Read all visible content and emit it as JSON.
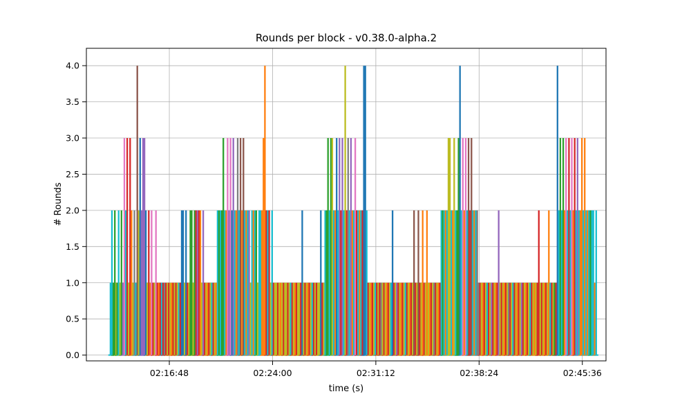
{
  "chart_data": {
    "type": "line",
    "title": "Rounds per block  -  v0.38.0-alpha.2",
    "xlabel": "time (s)",
    "ylabel": "# Rounds",
    "ylim": [
      -0.08,
      4.24
    ],
    "y_ticks": [
      "0.0",
      "0.5",
      "1.0",
      "1.5",
      "2.0",
      "2.5",
      "3.0",
      "3.5",
      "4.0"
    ],
    "xlim_seconds": [
      7861,
      10035
    ],
    "x_ticks": [
      {
        "t": 8208,
        "label": "02:16:48"
      },
      {
        "t": 8640,
        "label": "02:24:00"
      },
      {
        "t": 9072,
        "label": "02:31:12"
      },
      {
        "t": 9504,
        "label": "02:38:24"
      },
      {
        "t": 9936,
        "label": "02:45:36"
      }
    ],
    "grid": true,
    "legend": "none",
    "palette": [
      "#1f77b4",
      "#ff7f0e",
      "#2ca02c",
      "#d62728",
      "#9467bd",
      "#8c564b",
      "#e377c2",
      "#7f7f7f",
      "#bcbd22",
      "#17becf"
    ],
    "spikes": [
      [
        7962,
        1,
        9
      ],
      [
        7968,
        2,
        9
      ],
      [
        7974,
        1,
        2
      ],
      [
        7980,
        2,
        2
      ],
      [
        7986,
        1,
        8
      ],
      [
        7990,
        1,
        2
      ],
      [
        7996,
        2,
        9
      ],
      [
        8002,
        1,
        8
      ],
      [
        8008,
        2,
        2
      ],
      [
        8014,
        1,
        4
      ],
      [
        8020,
        3,
        6
      ],
      [
        8026,
        2,
        9
      ],
      [
        8032,
        3,
        3
      ],
      [
        8038,
        1,
        8
      ],
      [
        8044,
        3,
        3
      ],
      [
        8050,
        2,
        1
      ],
      [
        8056,
        1,
        8
      ],
      [
        8062,
        2,
        7
      ],
      [
        8068,
        1,
        9
      ],
      [
        8074,
        4,
        5
      ],
      [
        8080,
        2,
        8
      ],
      [
        8086,
        3,
        0
      ],
      [
        8092,
        2,
        4
      ],
      [
        8098,
        3,
        4
      ],
      [
        8104,
        3,
        4
      ],
      [
        8110,
        2,
        0
      ],
      [
        8116,
        1,
        8
      ],
      [
        8122,
        2,
        3
      ],
      [
        8128,
        1,
        1
      ],
      [
        8134,
        2,
        6
      ],
      [
        8140,
        1,
        3
      ],
      [
        8146,
        1,
        8
      ],
      [
        8152,
        2,
        6
      ],
      [
        8158,
        1,
        3
      ],
      [
        8164,
        1,
        1
      ],
      [
        8170,
        1,
        3
      ],
      [
        8176,
        1,
        9
      ],
      [
        8182,
        1,
        3
      ],
      [
        8188,
        1,
        7
      ],
      [
        8194,
        1,
        3
      ],
      [
        8200,
        1,
        8
      ],
      [
        8206,
        1,
        3
      ],
      [
        8212,
        1,
        8
      ],
      [
        8218,
        1,
        1
      ],
      [
        8224,
        1,
        3
      ],
      [
        8230,
        1,
        8
      ],
      [
        8236,
        1,
        3
      ],
      [
        8242,
        1,
        8
      ],
      [
        8248,
        1,
        9
      ],
      [
        8254,
        1,
        3
      ],
      [
        8260,
        2,
        0
      ],
      [
        8266,
        2,
        0
      ],
      [
        8272,
        1,
        8
      ],
      [
        8278,
        2,
        0
      ],
      [
        8284,
        1,
        3
      ],
      [
        8290,
        1,
        8
      ],
      [
        8296,
        2,
        2
      ],
      [
        8302,
        2,
        2
      ],
      [
        8308,
        1,
        8
      ],
      [
        8314,
        2,
        2
      ],
      [
        8320,
        2,
        3
      ],
      [
        8326,
        2,
        4
      ],
      [
        8332,
        2,
        3
      ],
      [
        8338,
        2,
        1
      ],
      [
        8344,
        1,
        8
      ],
      [
        8350,
        2,
        4
      ],
      [
        8356,
        1,
        3
      ],
      [
        8362,
        1,
        8
      ],
      [
        8368,
        1,
        1
      ],
      [
        8374,
        1,
        3
      ],
      [
        8380,
        1,
        8
      ],
      [
        8386,
        1,
        9
      ],
      [
        8392,
        1,
        3
      ],
      [
        8398,
        1,
        8
      ],
      [
        8404,
        1,
        1
      ],
      [
        8410,
        2,
        9
      ],
      [
        8416,
        2,
        2
      ],
      [
        8422,
        2,
        9
      ],
      [
        8428,
        2,
        2
      ],
      [
        8434,
        3,
        2
      ],
      [
        8440,
        2,
        9
      ],
      [
        8446,
        2,
        1
      ],
      [
        8452,
        3,
        6
      ],
      [
        8458,
        2,
        4
      ],
      [
        8464,
        3,
        6
      ],
      [
        8470,
        2,
        0
      ],
      [
        8476,
        3,
        4
      ],
      [
        8482,
        2,
        9
      ],
      [
        8488,
        2,
        1
      ],
      [
        8494,
        3,
        7
      ],
      [
        8500,
        2,
        9
      ],
      [
        8506,
        3,
        5
      ],
      [
        8512,
        2,
        1
      ],
      [
        8518,
        3,
        5
      ],
      [
        8524,
        2,
        9
      ],
      [
        8530,
        2,
        1
      ],
      [
        8536,
        2,
        9
      ],
      [
        8542,
        2,
        4
      ],
      [
        8548,
        1,
        8
      ],
      [
        8554,
        2,
        9
      ],
      [
        8560,
        2,
        1
      ],
      [
        8566,
        2,
        9
      ],
      [
        8572,
        2,
        2
      ],
      [
        8578,
        1,
        8
      ],
      [
        8584,
        2,
        9
      ],
      [
        8590,
        2,
        9
      ],
      [
        8596,
        2,
        1
      ],
      [
        8602,
        3,
        1
      ],
      [
        8608,
        4,
        1
      ],
      [
        8614,
        2,
        3
      ],
      [
        8620,
        2,
        9
      ],
      [
        8626,
        2,
        3
      ],
      [
        8632,
        1,
        8
      ],
      [
        8638,
        2,
        9
      ],
      [
        8644,
        1,
        3
      ],
      [
        8650,
        1,
        8
      ],
      [
        8656,
        1,
        8
      ],
      [
        8662,
        1,
        3
      ],
      [
        8668,
        1,
        8
      ],
      [
        8674,
        1,
        1
      ],
      [
        8680,
        1,
        8
      ],
      [
        8686,
        1,
        3
      ],
      [
        8692,
        1,
        8
      ],
      [
        8698,
        1,
        8
      ],
      [
        8704,
        1,
        3
      ],
      [
        8710,
        1,
        8
      ],
      [
        8716,
        1,
        9
      ],
      [
        8722,
        1,
        3
      ],
      [
        8728,
        1,
        8
      ],
      [
        8734,
        1,
        1
      ],
      [
        8740,
        1,
        3
      ],
      [
        8746,
        1,
        8
      ],
      [
        8752,
        1,
        8
      ],
      [
        8758,
        1,
        3
      ],
      [
        8764,
        2,
        0
      ],
      [
        8770,
        1,
        8
      ],
      [
        8776,
        1,
        3
      ],
      [
        8782,
        1,
        8
      ],
      [
        8788,
        1,
        1
      ],
      [
        8794,
        1,
        3
      ],
      [
        8800,
        1,
        8
      ],
      [
        8806,
        1,
        9
      ],
      [
        8812,
        1,
        3
      ],
      [
        8818,
        1,
        8
      ],
      [
        8824,
        1,
        3
      ],
      [
        8830,
        1,
        8
      ],
      [
        8836,
        1,
        8
      ],
      [
        8842,
        2,
        0
      ],
      [
        8848,
        1,
        3
      ],
      [
        8854,
        1,
        8
      ],
      [
        8860,
        2,
        9
      ],
      [
        8866,
        2,
        2
      ],
      [
        8872,
        3,
        2
      ],
      [
        8878,
        2,
        9
      ],
      [
        8884,
        3,
        2
      ],
      [
        8890,
        3,
        8
      ],
      [
        8896,
        2,
        9
      ],
      [
        8902,
        2,
        1
      ],
      [
        8908,
        3,
        0
      ],
      [
        8914,
        2,
        9
      ],
      [
        8920,
        3,
        4
      ],
      [
        8926,
        2,
        3
      ],
      [
        8932,
        3,
        4
      ],
      [
        8938,
        2,
        9
      ],
      [
        8944,
        4,
        8
      ],
      [
        8950,
        2,
        3
      ],
      [
        8956,
        3,
        7
      ],
      [
        8962,
        2,
        9
      ],
      [
        8968,
        3,
        4
      ],
      [
        8974,
        2,
        1
      ],
      [
        8980,
        2,
        9
      ],
      [
        8986,
        3,
        6
      ],
      [
        8992,
        2,
        3
      ],
      [
        8998,
        2,
        9
      ],
      [
        9004,
        2,
        1
      ],
      [
        9010,
        2,
        9
      ],
      [
        9016,
        2,
        3
      ],
      [
        9022,
        4,
        0
      ],
      [
        9028,
        4,
        0
      ],
      [
        9034,
        2,
        9
      ],
      [
        9040,
        1,
        3
      ],
      [
        9046,
        1,
        8
      ],
      [
        9052,
        1,
        1
      ],
      [
        9058,
        1,
        3
      ],
      [
        9064,
        1,
        8
      ],
      [
        9070,
        1,
        9
      ],
      [
        9076,
        1,
        3
      ],
      [
        9082,
        1,
        8
      ],
      [
        9088,
        1,
        3
      ],
      [
        9094,
        1,
        7
      ],
      [
        9100,
        1,
        8
      ],
      [
        9106,
        1,
        3
      ],
      [
        9112,
        1,
        8
      ],
      [
        9118,
        1,
        1
      ],
      [
        9124,
        1,
        3
      ],
      [
        9130,
        1,
        8
      ],
      [
        9136,
        1,
        9
      ],
      [
        9142,
        2,
        0
      ],
      [
        9148,
        1,
        3
      ],
      [
        9154,
        1,
        8
      ],
      [
        9160,
        1,
        4
      ],
      [
        9166,
        1,
        3
      ],
      [
        9172,
        1,
        8
      ],
      [
        9178,
        1,
        1
      ],
      [
        9184,
        1,
        3
      ],
      [
        9190,
        1,
        8
      ],
      [
        9196,
        1,
        9
      ],
      [
        9202,
        1,
        3
      ],
      [
        9208,
        1,
        8
      ],
      [
        9214,
        1,
        1
      ],
      [
        9220,
        1,
        3
      ],
      [
        9226,
        1,
        8
      ],
      [
        9232,
        2,
        5
      ],
      [
        9238,
        1,
        3
      ],
      [
        9244,
        1,
        8
      ],
      [
        9250,
        2,
        5
      ],
      [
        9256,
        1,
        3
      ],
      [
        9262,
        1,
        8
      ],
      [
        9268,
        2,
        1
      ],
      [
        9274,
        1,
        3
      ],
      [
        9280,
        1,
        8
      ],
      [
        9286,
        2,
        1
      ],
      [
        9292,
        1,
        8
      ],
      [
        9298,
        1,
        1
      ],
      [
        9304,
        1,
        3
      ],
      [
        9310,
        1,
        8
      ],
      [
        9316,
        1,
        7
      ],
      [
        9322,
        1,
        3
      ],
      [
        9328,
        1,
        8
      ],
      [
        9334,
        1,
        1
      ],
      [
        9340,
        1,
        3
      ],
      [
        9346,
        2,
        9
      ],
      [
        9352,
        2,
        2
      ],
      [
        9358,
        2,
        9
      ],
      [
        9364,
        2,
        1
      ],
      [
        9370,
        2,
        9
      ],
      [
        9376,
        3,
        8
      ],
      [
        9382,
        3,
        8
      ],
      [
        9388,
        2,
        9
      ],
      [
        9394,
        2,
        1
      ],
      [
        9400,
        3,
        8
      ],
      [
        9406,
        2,
        9
      ],
      [
        9412,
        2,
        2
      ],
      [
        9418,
        3,
        2
      ],
      [
        9424,
        4,
        0
      ],
      [
        9430,
        2,
        9
      ],
      [
        9436,
        3,
        6
      ],
      [
        9442,
        2,
        1
      ],
      [
        9448,
        3,
        6
      ],
      [
        9454,
        2,
        9
      ],
      [
        9460,
        3,
        5
      ],
      [
        9466,
        2,
        3
      ],
      [
        9472,
        3,
        5
      ],
      [
        9478,
        2,
        9
      ],
      [
        9484,
        2,
        1
      ],
      [
        9490,
        2,
        9
      ],
      [
        9496,
        2,
        7
      ],
      [
        9502,
        1,
        7
      ],
      [
        9508,
        1,
        3
      ],
      [
        9514,
        1,
        8
      ],
      [
        9520,
        1,
        1
      ],
      [
        9526,
        1,
        3
      ],
      [
        9532,
        1,
        8
      ],
      [
        9538,
        1,
        9
      ],
      [
        9544,
        1,
        3
      ],
      [
        9550,
        1,
        8
      ],
      [
        9556,
        1,
        4
      ],
      [
        9562,
        1,
        3
      ],
      [
        9568,
        1,
        8
      ],
      [
        9574,
        1,
        1
      ],
      [
        9580,
        1,
        3
      ],
      [
        9586,
        2,
        4
      ],
      [
        9592,
        1,
        8
      ],
      [
        9598,
        1,
        3
      ],
      [
        9604,
        1,
        8
      ],
      [
        9610,
        1,
        1
      ],
      [
        9616,
        1,
        3
      ],
      [
        9622,
        1,
        8
      ],
      [
        9628,
        1,
        7
      ],
      [
        9634,
        1,
        3
      ],
      [
        9640,
        1,
        8
      ],
      [
        9646,
        1,
        9
      ],
      [
        9652,
        1,
        3
      ],
      [
        9658,
        1,
        8
      ],
      [
        9664,
        1,
        1
      ],
      [
        9670,
        1,
        3
      ],
      [
        9676,
        1,
        8
      ],
      [
        9682,
        1,
        4
      ],
      [
        9688,
        1,
        3
      ],
      [
        9694,
        1,
        8
      ],
      [
        9700,
        1,
        1
      ],
      [
        9706,
        1,
        3
      ],
      [
        9712,
        1,
        8
      ],
      [
        9718,
        1,
        9
      ],
      [
        9724,
        1,
        3
      ],
      [
        9730,
        1,
        8
      ],
      [
        9736,
        1,
        1
      ],
      [
        9742,
        1,
        8
      ],
      [
        9748,
        1,
        3
      ],
      [
        9754,
        2,
        3
      ],
      [
        9760,
        1,
        8
      ],
      [
        9766,
        1,
        3
      ],
      [
        9772,
        1,
        8
      ],
      [
        9778,
        1,
        1
      ],
      [
        9784,
        1,
        3
      ],
      [
        9790,
        1,
        8
      ],
      [
        9796,
        2,
        1
      ],
      [
        9802,
        1,
        9
      ],
      [
        9808,
        1,
        3
      ],
      [
        9814,
        1,
        8
      ],
      [
        9820,
        1,
        2
      ],
      [
        9826,
        1,
        3
      ],
      [
        9832,
        4,
        0
      ],
      [
        9838,
        2,
        9
      ],
      [
        9844,
        3,
        2
      ],
      [
        9850,
        2,
        9
      ],
      [
        9856,
        3,
        2
      ],
      [
        9862,
        2,
        1
      ],
      [
        9868,
        3,
        6
      ],
      [
        9874,
        2,
        9
      ],
      [
        9880,
        3,
        3
      ],
      [
        9886,
        2,
        9
      ],
      [
        9892,
        3,
        6
      ],
      [
        9898,
        2,
        1
      ],
      [
        9904,
        3,
        3
      ],
      [
        9910,
        2,
        9
      ],
      [
        9916,
        3,
        4
      ],
      [
        9922,
        2,
        9
      ],
      [
        9928,
        2,
        1
      ],
      [
        9934,
        3,
        1
      ],
      [
        9940,
        2,
        9
      ],
      [
        9946,
        3,
        1
      ],
      [
        9952,
        2,
        9
      ],
      [
        9958,
        2,
        1
      ],
      [
        9964,
        2,
        9
      ],
      [
        9970,
        2,
        2
      ],
      [
        9976,
        2,
        9
      ],
      [
        9982,
        2,
        9
      ],
      [
        9988,
        1,
        1
      ],
      [
        9994,
        2,
        9
      ]
    ]
  }
}
